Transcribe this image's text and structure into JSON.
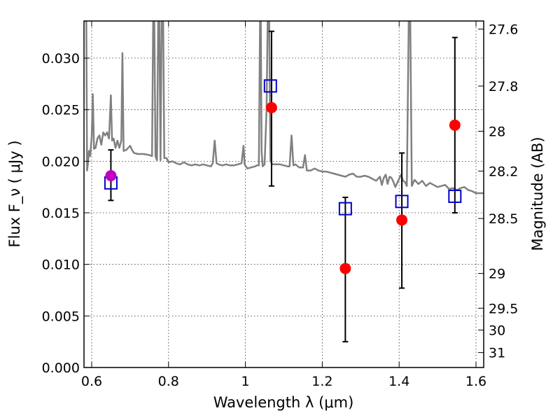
{
  "chart_data": {
    "type": "scatter",
    "xlabel": "Wavelength  λ (μm)",
    "ylabel_left": "Flux  F_ν  ( μJy )",
    "ylabel_right": "Magnitude (AB)",
    "xlim": [
      0.58,
      1.62
    ],
    "ylim": [
      0.0,
      0.0336
    ],
    "x_ticks": [
      {
        "value": 0.6,
        "label": "0.6"
      },
      {
        "value": 0.8,
        "label": "0.8"
      },
      {
        "value": 1.0,
        "label": "1"
      },
      {
        "value": 1.2,
        "label": "1.2"
      },
      {
        "value": 1.4,
        "label": "1.4"
      },
      {
        "value": 1.6,
        "label": "1.6"
      }
    ],
    "y_ticks": [
      {
        "value": 0.0,
        "label": "0.000"
      },
      {
        "value": 0.005,
        "label": "0.005"
      },
      {
        "value": 0.01,
        "label": "0.010"
      },
      {
        "value": 0.015,
        "label": "0.015"
      },
      {
        "value": 0.02,
        "label": "0.020"
      },
      {
        "value": 0.025,
        "label": "0.025"
      },
      {
        "value": 0.03,
        "label": "0.030"
      }
    ],
    "right_ticks": [
      {
        "flux": 0.03281,
        "label": "27.6"
      },
      {
        "flux": 0.02729,
        "label": "27.8"
      },
      {
        "flux": 0.02291,
        "label": "28"
      },
      {
        "flux": 0.01905,
        "label": "28.2"
      },
      {
        "flux": 0.01445,
        "label": "28.5"
      },
      {
        "flux": 0.00912,
        "label": "29"
      },
      {
        "flux": 0.00575,
        "label": "29.5"
      },
      {
        "flux": 0.00363,
        "label": "30"
      },
      {
        "flux": 0.00145,
        "label": "31"
      }
    ],
    "grid": true,
    "series": [
      {
        "style": "line",
        "color": "#808080",
        "points": [
          [
            0.58,
            0.0336
          ],
          [
            0.586,
            0.0336
          ],
          [
            0.588,
            0.0191
          ],
          [
            0.59,
            0.0197
          ],
          [
            0.593,
            0.021
          ],
          [
            0.596,
            0.0205
          ],
          [
            0.6,
            0.0224
          ],
          [
            0.603,
            0.0265
          ],
          [
            0.606,
            0.0212
          ],
          [
            0.61,
            0.0213
          ],
          [
            0.615,
            0.0222
          ],
          [
            0.62,
            0.0225
          ],
          [
            0.625,
            0.0216
          ],
          [
            0.63,
            0.0228
          ],
          [
            0.635,
            0.0225
          ],
          [
            0.64,
            0.0228
          ],
          [
            0.645,
            0.0222
          ],
          [
            0.65,
            0.0264
          ],
          [
            0.653,
            0.022
          ],
          [
            0.657,
            0.0222
          ],
          [
            0.662,
            0.0213
          ],
          [
            0.667,
            0.022
          ],
          [
            0.672,
            0.0213
          ],
          [
            0.677,
            0.022
          ],
          [
            0.68,
            0.0305
          ],
          [
            0.683,
            0.021
          ],
          [
            0.69,
            0.0211
          ],
          [
            0.7,
            0.0215
          ],
          [
            0.705,
            0.0211
          ],
          [
            0.71,
            0.0208
          ],
          [
            0.72,
            0.0207
          ],
          [
            0.735,
            0.0207
          ],
          [
            0.75,
            0.0206
          ],
          [
            0.757,
            0.0205
          ],
          [
            0.76,
            0.0336
          ],
          [
            0.763,
            0.0336
          ],
          [
            0.766,
            0.0205
          ],
          [
            0.77,
            0.0201
          ],
          [
            0.773,
            0.0336
          ],
          [
            0.776,
            0.0336
          ],
          [
            0.779,
            0.0201
          ],
          [
            0.782,
            0.0336
          ],
          [
            0.786,
            0.0336
          ],
          [
            0.789,
            0.0203
          ],
          [
            0.795,
            0.0203
          ],
          [
            0.8,
            0.0199
          ],
          [
            0.81,
            0.02
          ],
          [
            0.82,
            0.0198
          ],
          [
            0.83,
            0.0197
          ],
          [
            0.84,
            0.0199
          ],
          [
            0.85,
            0.0197
          ],
          [
            0.86,
            0.0196
          ],
          [
            0.87,
            0.0197
          ],
          [
            0.88,
            0.0196
          ],
          [
            0.89,
            0.0197
          ],
          [
            0.9,
            0.0196
          ],
          [
            0.91,
            0.0195
          ],
          [
            0.915,
            0.0198
          ],
          [
            0.92,
            0.022
          ],
          [
            0.925,
            0.0198
          ],
          [
            0.93,
            0.0197
          ],
          [
            0.94,
            0.0196
          ],
          [
            0.95,
            0.0197
          ],
          [
            0.96,
            0.0196
          ],
          [
            0.97,
            0.0196
          ],
          [
            0.98,
            0.0197
          ],
          [
            0.99,
            0.0198
          ],
          [
            0.995,
            0.0215
          ],
          [
            0.998,
            0.0197
          ],
          [
            1.005,
            0.0193
          ],
          [
            1.015,
            0.0194
          ],
          [
            1.025,
            0.0195
          ],
          [
            1.03,
            0.0196
          ],
          [
            1.035,
            0.0196
          ],
          [
            1.038,
            0.0336
          ],
          [
            1.04,
            0.0336
          ],
          [
            1.042,
            0.021
          ],
          [
            1.045,
            0.0195
          ],
          [
            1.05,
            0.0197
          ],
          [
            1.055,
            0.025
          ],
          [
            1.058,
            0.0336
          ],
          [
            1.062,
            0.0336
          ],
          [
            1.065,
            0.02
          ],
          [
            1.07,
            0.0197
          ],
          [
            1.08,
            0.0197
          ],
          [
            1.09,
            0.0197
          ],
          [
            1.1,
            0.0196
          ],
          [
            1.11,
            0.0195
          ],
          [
            1.115,
            0.0195
          ],
          [
            1.12,
            0.0225
          ],
          [
            1.125,
            0.0196
          ],
          [
            1.13,
            0.0197
          ],
          [
            1.14,
            0.0194
          ],
          [
            1.15,
            0.0194
          ],
          [
            1.155,
            0.0206
          ],
          [
            1.16,
            0.0191
          ],
          [
            1.17,
            0.0191
          ],
          [
            1.18,
            0.0193
          ],
          [
            1.19,
            0.0191
          ],
          [
            1.2,
            0.019
          ],
          [
            1.21,
            0.019
          ],
          [
            1.22,
            0.0189
          ],
          [
            1.23,
            0.0188
          ],
          [
            1.24,
            0.0187
          ],
          [
            1.25,
            0.0186
          ],
          [
            1.26,
            0.0185
          ],
          [
            1.27,
            0.0187
          ],
          [
            1.28,
            0.0188
          ],
          [
            1.29,
            0.0185
          ],
          [
            1.3,
            0.0185
          ],
          [
            1.31,
            0.0186
          ],
          [
            1.32,
            0.0185
          ],
          [
            1.33,
            0.0183
          ],
          [
            1.34,
            0.0181
          ],
          [
            1.35,
            0.0185
          ],
          [
            1.355,
            0.0177
          ],
          [
            1.36,
            0.0184
          ],
          [
            1.365,
            0.0187
          ],
          [
            1.37,
            0.0178
          ],
          [
            1.375,
            0.0185
          ],
          [
            1.38,
            0.0184
          ],
          [
            1.385,
            0.018
          ],
          [
            1.39,
            0.0175
          ],
          [
            1.395,
            0.0179
          ],
          [
            1.4,
            0.0183
          ],
          [
            1.405,
            0.0187
          ],
          [
            1.41,
            0.0181
          ],
          [
            1.415,
            0.018
          ],
          [
            1.42,
            0.0176
          ],
          [
            1.425,
            0.0336
          ],
          [
            1.429,
            0.0336
          ],
          [
            1.433,
            0.0176
          ],
          [
            1.44,
            0.0182
          ],
          [
            1.45,
            0.0178
          ],
          [
            1.46,
            0.0181
          ],
          [
            1.47,
            0.0176
          ],
          [
            1.48,
            0.0179
          ],
          [
            1.49,
            0.0177
          ],
          [
            1.5,
            0.0175
          ],
          [
            1.51,
            0.0176
          ],
          [
            1.52,
            0.0177
          ],
          [
            1.53,
            0.0173
          ],
          [
            1.54,
            0.0174
          ],
          [
            1.55,
            0.0172
          ],
          [
            1.56,
            0.0174
          ],
          [
            1.57,
            0.0175
          ],
          [
            1.58,
            0.0172
          ],
          [
            1.59,
            0.0171
          ],
          [
            1.6,
            0.0169
          ],
          [
            1.61,
            0.0169
          ],
          [
            1.62,
            0.0169
          ]
        ]
      },
      {
        "style": "points",
        "marker": "circle",
        "color": "#ff0000",
        "points": [
          {
            "x": 1.068,
            "y": 0.0252,
            "yerr_low": 0.0176,
            "yerr_high": 0.0326
          },
          {
            "x": 1.26,
            "y": 0.0096,
            "yerr_low": 0.0025,
            "yerr_high": 0.0165
          },
          {
            "x": 1.407,
            "y": 0.0143,
            "yerr_low": 0.0077,
            "yerr_high": 0.0208
          },
          {
            "x": 1.545,
            "y": 0.0235,
            "yerr_low": 0.015,
            "yerr_high": 0.032
          }
        ]
      },
      {
        "style": "points",
        "marker": "circle",
        "color": "#c000c0",
        "points": [
          {
            "x": 0.65,
            "y": 0.0186,
            "yerr_low": 0.0162,
            "yerr_high": 0.0211
          }
        ]
      },
      {
        "style": "points",
        "marker": "open-square",
        "color": "#0000cc",
        "points": [
          {
            "x": 0.65,
            "y": 0.0179
          },
          {
            "x": 1.065,
            "y": 0.0273
          },
          {
            "x": 1.26,
            "y": 0.0154
          },
          {
            "x": 1.407,
            "y": 0.0161
          },
          {
            "x": 1.545,
            "y": 0.0166
          }
        ]
      }
    ]
  }
}
